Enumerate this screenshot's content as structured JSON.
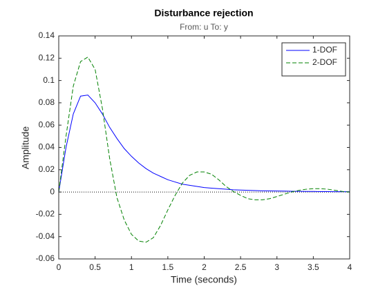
{
  "chart_data": {
    "type": "line",
    "title": "Disturbance rejection",
    "subtitle": "From: u  To: y",
    "x_label": "Time (seconds)",
    "y_label": "Amplitude",
    "x": [
      0,
      0.1,
      0.2,
      0.3,
      0.4,
      0.5,
      0.6,
      0.7,
      0.8,
      0.9,
      1,
      1.1,
      1.2,
      1.3,
      1.4,
      1.5,
      1.6,
      1.7,
      1.8,
      1.9,
      2,
      2.1,
      2.2,
      2.3,
      2.4,
      2.5,
      2.6,
      2.7,
      2.8,
      2.9,
      3,
      3.1,
      3.2,
      3.3,
      3.4,
      3.5,
      3.6,
      3.7,
      3.8,
      3.9,
      4
    ],
    "series": [
      {
        "name": "1-DOF",
        "color": "#0000ff",
        "style": "solid",
        "values": [
          0,
          0.04,
          0.07,
          0.086,
          0.087,
          0.08,
          0.07,
          0.058,
          0.048,
          0.039,
          0.032,
          0.026,
          0.021,
          0.017,
          0.014,
          0.011,
          0.009,
          0.007,
          0.006,
          0.005,
          0.004,
          0.0035,
          0.003,
          0.0025,
          0.002,
          0.0018,
          0.0015,
          0.0013,
          0.0011,
          0.001,
          0.0009,
          0.0008,
          0.0007,
          0.0006,
          0.0005,
          0.0005,
          0.0004,
          0.0004,
          0.0003,
          0.0003,
          0.0003
        ]
      },
      {
        "name": "2-DOF",
        "color": "#008000",
        "style": "dashed",
        "values": [
          0,
          0.05,
          0.095,
          0.117,
          0.121,
          0.11,
          0.075,
          0.03,
          -0.005,
          -0.025,
          -0.038,
          -0.044,
          -0.045,
          -0.041,
          -0.03,
          -0.016,
          -0.003,
          0.008,
          0.015,
          0.018,
          0.018,
          0.016,
          0.011,
          0.005,
          0.0005,
          -0.003,
          -0.006,
          -0.007,
          -0.007,
          -0.006,
          -0.004,
          -0.002,
          0,
          0.0015,
          0.0025,
          0.003,
          0.003,
          0.0025,
          0.0015,
          0.0005,
          0
        ]
      }
    ],
    "xlim": [
      0,
      4
    ],
    "xticks": [
      0,
      0.5,
      1,
      1.5,
      2,
      2.5,
      3,
      3.5,
      4
    ],
    "ylim": [
      -0.06,
      0.14
    ],
    "yticks": [
      -0.06,
      -0.04,
      -0.02,
      0,
      0.02,
      0.04,
      0.06,
      0.08,
      0.1,
      0.12,
      0.14
    ],
    "grid": false,
    "legend": "top-right"
  }
}
